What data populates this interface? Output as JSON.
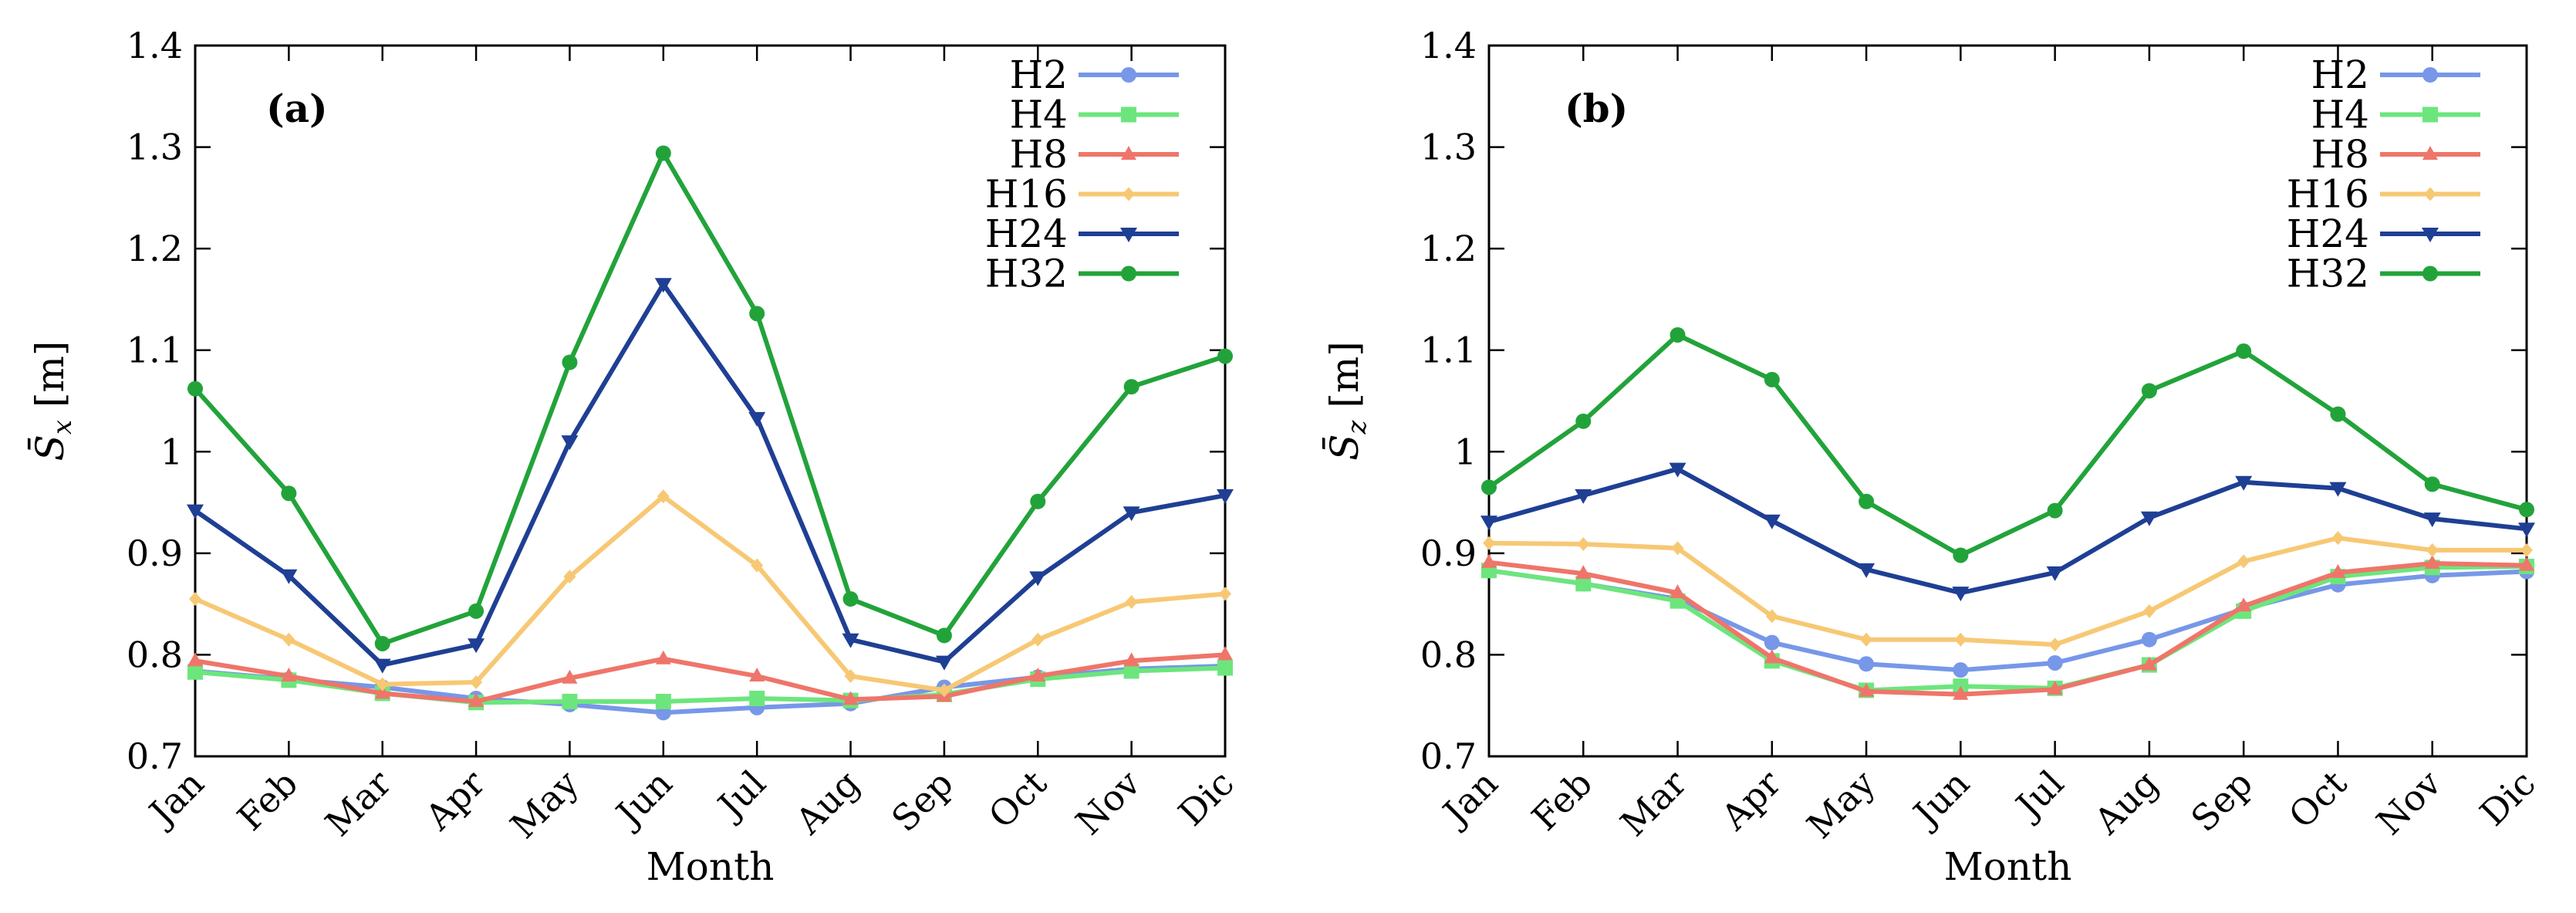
{
  "chart_data": [
    {
      "type": "line",
      "panel_label": "(a)",
      "ylabel_main": "S̄",
      "ylabel_sub": "x",
      "ylabel_unit": " [m]",
      "xlabel": "Month",
      "categories": [
        "Jan",
        "Feb",
        "Mar",
        "Apr",
        "May",
        "Jun",
        "Jul",
        "Aug",
        "Sep",
        "Oct",
        "Nov",
        "Dic"
      ],
      "ylim": [
        0.7,
        1.4
      ],
      "yticks": [
        "0.7",
        "0.8",
        "0.9",
        "1",
        "1.1",
        "1.2",
        "1.3",
        "1.4"
      ],
      "legend_position": "top-right",
      "series": [
        {
          "name": "H2",
          "color": "#7797e8",
          "marker": "circle",
          "values": [
            0.784,
            0.776,
            0.768,
            0.757,
            0.751,
            0.743,
            0.748,
            0.752,
            0.768,
            0.778,
            0.786,
            0.789
          ]
        },
        {
          "name": "H4",
          "color": "#6ce67c",
          "marker": "square",
          "values": [
            0.783,
            0.775,
            0.762,
            0.753,
            0.754,
            0.754,
            0.757,
            0.755,
            0.761,
            0.776,
            0.784,
            0.787
          ]
        },
        {
          "name": "H8",
          "color": "#ef756a",
          "marker": "triangle-up",
          "values": [
            0.794,
            0.779,
            0.762,
            0.754,
            0.777,
            0.796,
            0.779,
            0.756,
            0.759,
            0.779,
            0.794,
            0.8
          ]
        },
        {
          "name": "H16",
          "color": "#f7c874",
          "marker": "diamond",
          "values": [
            0.855,
            0.815,
            0.771,
            0.773,
            0.877,
            0.956,
            0.888,
            0.779,
            0.765,
            0.815,
            0.852,
            0.86
          ]
        },
        {
          "name": "H24",
          "color": "#1f3f94",
          "marker": "triangle-down",
          "values": [
            0.942,
            0.878,
            0.79,
            0.81,
            1.01,
            1.165,
            1.033,
            0.815,
            0.793,
            0.876,
            0.94,
            0.957
          ]
        },
        {
          "name": "H32",
          "color": "#22a33a",
          "marker": "circle",
          "values": [
            1.062,
            0.959,
            0.811,
            0.843,
            1.088,
            1.294,
            1.136,
            0.855,
            0.819,
            0.951,
            1.064,
            1.094
          ]
        }
      ]
    },
    {
      "type": "line",
      "panel_label": "(b)",
      "ylabel_main": "S̄",
      "ylabel_sub": "z",
      "ylabel_unit": " [m]",
      "xlabel": "Month",
      "categories": [
        "Jan",
        "Feb",
        "Mar",
        "Apr",
        "May",
        "Jun",
        "Jul",
        "Aug",
        "Sep",
        "Oct",
        "Nov",
        "Dic"
      ],
      "ylim": [
        0.7,
        1.4
      ],
      "yticks": [
        "0.7",
        "0.8",
        "0.9",
        "1",
        "1.1",
        "1.2",
        "1.3",
        "1.4"
      ],
      "legend_position": "top-right",
      "series": [
        {
          "name": "H2",
          "color": "#7797e8",
          "marker": "circle",
          "values": [
            0.883,
            0.87,
            0.855,
            0.812,
            0.791,
            0.785,
            0.792,
            0.815,
            0.845,
            0.869,
            0.878,
            0.882
          ]
        },
        {
          "name": "H4",
          "color": "#6ce67c",
          "marker": "square",
          "values": [
            0.883,
            0.87,
            0.853,
            0.794,
            0.765,
            0.769,
            0.767,
            0.79,
            0.843,
            0.877,
            0.886,
            0.887
          ]
        },
        {
          "name": "H8",
          "color": "#ef756a",
          "marker": "triangle-up",
          "values": [
            0.891,
            0.88,
            0.861,
            0.797,
            0.764,
            0.761,
            0.766,
            0.79,
            0.848,
            0.881,
            0.89,
            0.888
          ]
        },
        {
          "name": "H16",
          "color": "#f7c874",
          "marker": "diamond",
          "values": [
            0.91,
            0.909,
            0.905,
            0.838,
            0.815,
            0.815,
            0.81,
            0.843,
            0.892,
            0.915,
            0.903,
            0.903
          ]
        },
        {
          "name": "H24",
          "color": "#1f3f94",
          "marker": "triangle-down",
          "values": [
            0.931,
            0.957,
            0.983,
            0.932,
            0.884,
            0.861,
            0.881,
            0.935,
            0.97,
            0.964,
            0.934,
            0.924
          ]
        },
        {
          "name": "H32",
          "color": "#22a33a",
          "marker": "circle",
          "values": [
            0.965,
            1.03,
            1.115,
            1.071,
            0.951,
            0.898,
            0.942,
            1.06,
            1.099,
            1.037,
            0.968,
            0.943
          ]
        }
      ]
    }
  ]
}
